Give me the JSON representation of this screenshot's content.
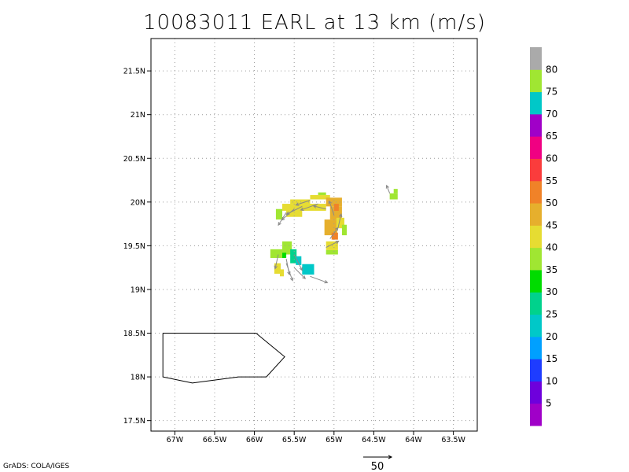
{
  "title": "10083011 EARL at 13 km (m/s)",
  "credit": "GrADS: COLA/IGES",
  "chart_data": {
    "type": "heatmap",
    "title": "10083011 EARL at 13 km (m/s)",
    "x_ticks": [
      {
        "value": -67.0,
        "label": "67W"
      },
      {
        "value": -66.5,
        "label": "66.5W"
      },
      {
        "value": -66.0,
        "label": "66W"
      },
      {
        "value": -65.5,
        "label": "65.5W"
      },
      {
        "value": -65.0,
        "label": "65W"
      },
      {
        "value": -64.5,
        "label": "64.5W"
      },
      {
        "value": -64.0,
        "label": "64W"
      },
      {
        "value": -63.5,
        "label": "63.5W"
      }
    ],
    "y_ticks": [
      {
        "value": 17.5,
        "label": "17.5N"
      },
      {
        "value": 18.0,
        "label": "18N"
      },
      {
        "value": 18.5,
        "label": "18.5N"
      },
      {
        "value": 19.0,
        "label": "19N"
      },
      {
        "value": 19.5,
        "label": "19.5N"
      },
      {
        "value": 20.0,
        "label": "20N"
      },
      {
        "value": 20.5,
        "label": "20.5N"
      },
      {
        "value": 21.0,
        "label": "21N"
      },
      {
        "value": 21.5,
        "label": "21.5N"
      }
    ],
    "xlim": [
      -67.3,
      -63.2
    ],
    "ylim": [
      17.38,
      21.87
    ],
    "grid": true,
    "colorbar": {
      "labels": [
        "5",
        "10",
        "15",
        "20",
        "25",
        "30",
        "35",
        "40",
        "45",
        "50",
        "55",
        "60",
        "65",
        "70",
        "75",
        "80"
      ],
      "colors": [
        "#a000c8",
        "#6e00dc",
        "#1e3cff",
        "#00a0ff",
        "#00c8c8",
        "#00d28c",
        "#00dc00",
        "#a0e632",
        "#e6dc32",
        "#e6af2d",
        "#f08228",
        "#fa3c3c",
        "#f00082",
        "#a000c8",
        "#00c8c8",
        "#a0e632",
        "#aaaaaa"
      ]
    },
    "cells": [
      {
        "lon": -65.2,
        "lat": 20.07,
        "w": 0.1,
        "h": 0.04,
        "v": 35
      },
      {
        "lon": -65.3,
        "lat": 20.03,
        "w": 0.25,
        "h": 0.05,
        "v": 40
      },
      {
        "lon": -65.55,
        "lat": 19.98,
        "w": 0.25,
        "h": 0.05,
        "v": 40
      },
      {
        "lon": -65.65,
        "lat": 19.9,
        "w": 0.55,
        "h": 0.08,
        "v": 40
      },
      {
        "lon": -65.6,
        "lat": 19.83,
        "w": 0.2,
        "h": 0.08,
        "v": 40
      },
      {
        "lon": -65.73,
        "lat": 19.8,
        "w": 0.08,
        "h": 0.12,
        "v": 35
      },
      {
        "lon": -65.1,
        "lat": 19.95,
        "w": 0.2,
        "h": 0.1,
        "v": 45
      },
      {
        "lon": -65.05,
        "lat": 19.8,
        "w": 0.15,
        "h": 0.15,
        "v": 45
      },
      {
        "lon": -65.0,
        "lat": 19.9,
        "w": 0.06,
        "h": 0.08,
        "v": 50
      },
      {
        "lon": -65.12,
        "lat": 19.62,
        "w": 0.16,
        "h": 0.18,
        "v": 45
      },
      {
        "lon": -64.97,
        "lat": 19.7,
        "w": 0.1,
        "h": 0.12,
        "v": 40
      },
      {
        "lon": -65.03,
        "lat": 19.57,
        "w": 0.08,
        "h": 0.08,
        "v": 50
      },
      {
        "lon": -65.1,
        "lat": 19.45,
        "w": 0.15,
        "h": 0.1,
        "v": 40
      },
      {
        "lon": -64.9,
        "lat": 19.62,
        "w": 0.06,
        "h": 0.12,
        "v": 35
      },
      {
        "lon": -65.1,
        "lat": 19.4,
        "w": 0.15,
        "h": 0.05,
        "v": 35
      },
      {
        "lon": -65.8,
        "lat": 19.36,
        "w": 0.15,
        "h": 0.1,
        "v": 35
      },
      {
        "lon": -65.65,
        "lat": 19.4,
        "w": 0.12,
        "h": 0.15,
        "v": 35
      },
      {
        "lon": -65.65,
        "lat": 19.36,
        "w": 0.05,
        "h": 0.06,
        "v": 30
      },
      {
        "lon": -65.55,
        "lat": 19.3,
        "w": 0.08,
        "h": 0.16,
        "v": 25
      },
      {
        "lon": -65.48,
        "lat": 19.28,
        "w": 0.07,
        "h": 0.1,
        "v": 20
      },
      {
        "lon": -65.4,
        "lat": 19.17,
        "w": 0.15,
        "h": 0.12,
        "v": 20
      },
      {
        "lon": -65.75,
        "lat": 19.18,
        "w": 0.08,
        "h": 0.12,
        "v": 40
      },
      {
        "lon": -65.68,
        "lat": 19.15,
        "w": 0.05,
        "h": 0.08,
        "v": 40
      },
      {
        "lon": -64.3,
        "lat": 20.03,
        "w": 0.1,
        "h": 0.07,
        "v": 35
      },
      {
        "lon": -64.25,
        "lat": 20.1,
        "w": 0.05,
        "h": 0.05,
        "v": 35
      }
    ],
    "vectors": [
      {
        "lon": -65.3,
        "lat": 20.02,
        "u": -18,
        "v": -6
      },
      {
        "lon": -65.2,
        "lat": 19.98,
        "u": -22,
        "v": -8
      },
      {
        "lon": -65.4,
        "lat": 19.95,
        "u": -20,
        "v": -10
      },
      {
        "lon": -65.5,
        "lat": 19.92,
        "u": -16,
        "v": -14
      },
      {
        "lon": -65.6,
        "lat": 19.88,
        "u": -10,
        "v": -16
      },
      {
        "lon": -65.1,
        "lat": 19.92,
        "u": -16,
        "v": 4
      },
      {
        "lon": -65.0,
        "lat": 19.85,
        "u": -6,
        "v": 18
      },
      {
        "lon": -64.95,
        "lat": 19.7,
        "u": 4,
        "v": 18
      },
      {
        "lon": -65.05,
        "lat": 19.58,
        "u": 10,
        "v": 14
      },
      {
        "lon": -65.1,
        "lat": 19.48,
        "u": 16,
        "v": 8
      },
      {
        "lon": -65.7,
        "lat": 19.4,
        "u": -4,
        "v": -18
      },
      {
        "lon": -65.6,
        "lat": 19.35,
        "u": 4,
        "v": -20
      },
      {
        "lon": -65.5,
        "lat": 19.25,
        "u": 14,
        "v": -14
      },
      {
        "lon": -65.3,
        "lat": 19.15,
        "u": 22,
        "v": -8
      },
      {
        "lon": -65.5,
        "lat": 19.4,
        "u": 10,
        "v": -20
      },
      {
        "lon": -65.6,
        "lat": 19.3,
        "u": 8,
        "v": -22
      },
      {
        "lon": -64.3,
        "lat": 20.1,
        "u": -4,
        "v": 10
      }
    ],
    "coastline": [
      [
        -67.15,
        18.5
      ],
      [
        -65.98,
        18.5
      ],
      [
        -65.62,
        18.23
      ],
      [
        -65.85,
        18.0
      ],
      [
        -66.2,
        18.0
      ],
      [
        -66.78,
        17.93
      ],
      [
        -67.15,
        18.0
      ],
      [
        -67.15,
        18.5
      ]
    ],
    "reference_vector": {
      "label": "50"
    }
  }
}
